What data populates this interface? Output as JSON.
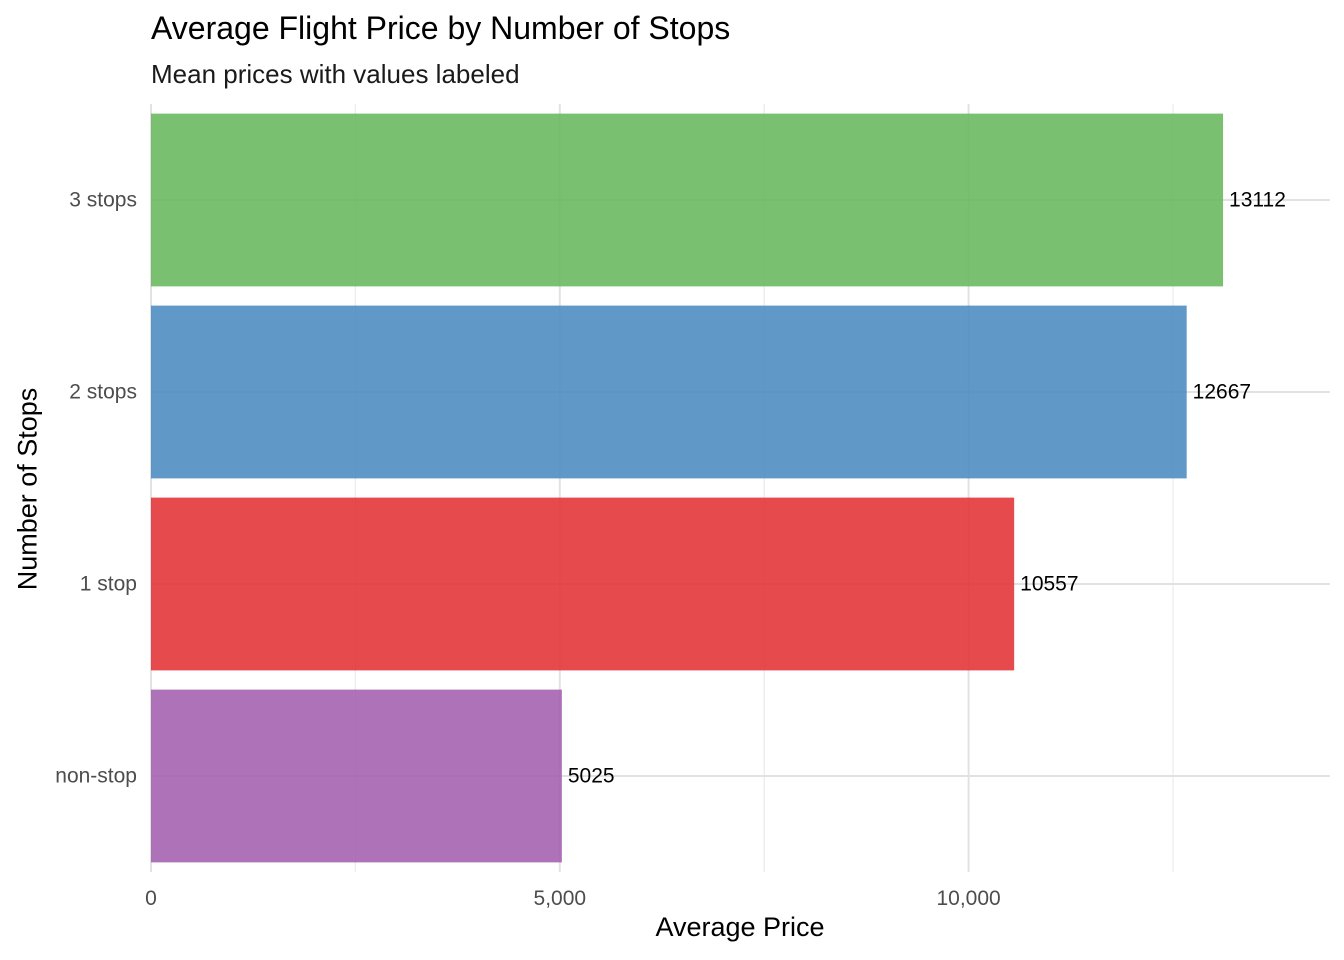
{
  "chart_data": {
    "type": "bar",
    "orientation": "horizontal",
    "title": "Average Flight Price by Number of Stops",
    "subtitle": "Mean prices with values labeled",
    "xlabel": "Average Price",
    "ylabel": "Number of Stops",
    "categories": [
      "3 stops",
      "2 stops",
      "1 stop",
      "non-stop"
    ],
    "values": [
      13112,
      12667,
      10557,
      5025
    ],
    "data_labels": [
      "13112",
      "12667",
      "10557",
      "5025"
    ],
    "colors": [
      "#6ABA62",
      "#4F8DC2",
      "#E43638",
      "#A463B0"
    ],
    "xlim": [
      0,
      14420
    ],
    "x_ticks": [
      0,
      5000,
      10000
    ],
    "x_tick_labels": [
      "0",
      "5,000",
      "10,000"
    ],
    "grid": true,
    "legend": "none"
  }
}
